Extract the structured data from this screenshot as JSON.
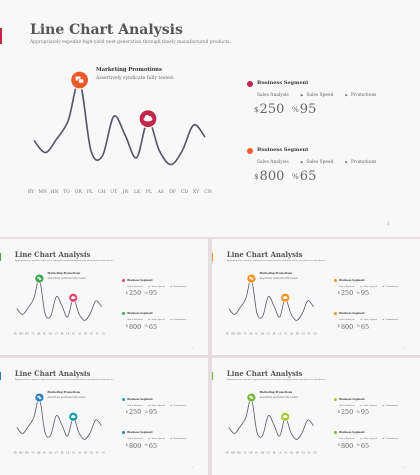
{
  "slide_title": "Line Chart Analysis",
  "slide_subtitle": "Appropriately expedite high-yield next-generation through timely manufactured products.",
  "page_number": "1",
  "annotation": {
    "title": "Marketing Promotions",
    "subtitle": "Assertively syndicate fully tested."
  },
  "x_labels": [
    "RY",
    "MN",
    "HN",
    "TG",
    "QR",
    "PL",
    "UH",
    "UT",
    "JR",
    "LK",
    "PL",
    "AS",
    "DF",
    "CD",
    "XV",
    "CN"
  ],
  "chart_data": {
    "type": "line",
    "x": [
      "RY",
      "MN",
      "HN",
      "TG",
      "QR",
      "PL",
      "UH",
      "UT",
      "JR",
      "LK",
      "PL",
      "AS",
      "DF",
      "CD",
      "XV",
      "CN"
    ],
    "series": [
      {
        "values": [
          0.32,
          0.18,
          0.34,
          0.55,
          1.0,
          0.2,
          0.14,
          0.6,
          0.38,
          0.12,
          0.55,
          0.2,
          0.04,
          0.2,
          0.5,
          0.36
        ]
      }
    ]
  },
  "segments": [
    {
      "title": "Business Segment",
      "labels": [
        "Sales Analysis",
        "Sales Speed",
        "Promotions"
      ],
      "values": [
        {
          "unit": "$",
          "number": "250"
        },
        {
          "unit": "%",
          "number": "95"
        }
      ]
    },
    {
      "title": "Business Segment",
      "labels": [
        "Sales Analysis",
        "Sales Speed",
        "Promotions"
      ],
      "values": [
        {
          "unit": "$",
          "number": "800"
        },
        {
          "unit": "%",
          "number": "65"
        }
      ]
    }
  ],
  "colors": {
    "accent": "#c2264a",
    "line": "#555566",
    "theme_red": [
      "#f05a28",
      "#c2264a"
    ],
    "theme_green_red": [
      "#3aa857",
      "#e5466a"
    ],
    "theme_orange": [
      "#f7931e",
      "#f7931e"
    ],
    "theme_blue_teal": [
      "#2e7fc1",
      "#1c9db4"
    ],
    "theme_green": [
      "#7ab83d",
      "#a6c73a"
    ]
  },
  "icons": [
    "presentation-icon",
    "cloud-icon"
  ]
}
